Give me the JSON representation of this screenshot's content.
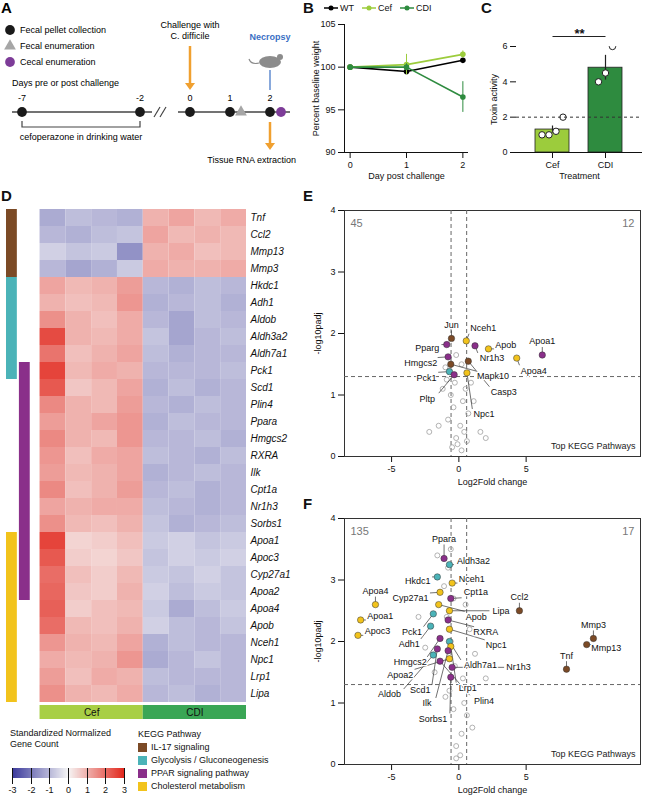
{
  "diagram": {
    "label": "A",
    "legend": [
      {
        "name": "Fecal pellet collection",
        "marker": "circle",
        "color": "#1a1a1a"
      },
      {
        "name": "Fecal enumeration",
        "marker": "triangle",
        "color": "#a6a6a6"
      },
      {
        "name": "Cecal enumeration",
        "marker": "circle",
        "color": "#7d3c98"
      }
    ],
    "axis_label": "Days pre or post challenge",
    "days": [
      -7,
      -2,
      0,
      1,
      2
    ],
    "samplings": [
      [
        0
      ],
      [
        0
      ],
      [
        0
      ],
      [
        0,
        1
      ],
      [
        0,
        2
      ]
    ],
    "treatment": {
      "label": "cefoperazone in drinking water",
      "from": -7,
      "to": -2
    },
    "challenge": {
      "label": "Challenge with C. difficile",
      "day": 0,
      "color": "#f0a030"
    },
    "necropsy": {
      "label": "Necropsy",
      "day": 2,
      "color": "#3a6fc4"
    },
    "harvest": {
      "label": "Tissue RNA extraction",
      "day": 2,
      "color": "#f0a030"
    }
  },
  "chart_data": [
    {
      "label": "B",
      "type": "line",
      "xlabel": "Day post challenge",
      "ylabel": "Percent baseline weight",
      "x": [
        0,
        1,
        2
      ],
      "xlim": [
        -0.1,
        2.1
      ],
      "xticks": [
        0,
        1,
        2
      ],
      "ylim": [
        90,
        105
      ],
      "yticks": [
        90,
        95,
        100,
        105
      ],
      "legend": "top",
      "marker": "circle",
      "series": [
        {
          "name": "WT",
          "color": "#000000",
          "values": [
            100,
            99.5,
            100.8
          ],
          "errors": [
            0,
            0.3,
            0.2
          ]
        },
        {
          "name": "Cef",
          "color": "#9ccc3c",
          "values": [
            100,
            100.3,
            101.5
          ],
          "errors": [
            0,
            1.2,
            0.4
          ]
        },
        {
          "name": "CDI",
          "color": "#2e8b3f",
          "values": [
            100,
            100.0,
            96.5
          ],
          "errors": [
            0,
            0.4,
            1.8
          ]
        }
      ]
    },
    {
      "label": "C",
      "type": "bar",
      "xlabel": "Treatment",
      "ylabel": "Toxin activity",
      "categories": [
        "Cef",
        "CDI"
      ],
      "values": [
        1.3,
        4.8
      ],
      "errors": [
        0.2,
        0.7
      ],
      "points": [
        [
          1.0,
          1.0,
          1.2,
          2.0
        ],
        [
          4.0,
          4.5,
          6.0
        ]
      ],
      "colors": [
        "#9ccc3c",
        "#2e8b3f"
      ],
      "ylim": [
        0,
        6
      ],
      "yticks": [
        0,
        2,
        4,
        6
      ],
      "threshold": 2,
      "significance": "**"
    },
    {
      "label": "D",
      "type": "heatmap",
      "genes": [
        "Tnf",
        "Ccl2",
        "Mmp13",
        "Mmp3",
        "Hkdc1",
        "Adh1",
        "Aldob",
        "Aldh3a2",
        "Aldh7a1",
        "Pck1",
        "Scd1",
        "Plin4",
        "Ppara",
        "Hmgcs2",
        "RXRA",
        "Ilk",
        "Cpt1a",
        "Nr1h3",
        "Sorbs1",
        "Apoa1",
        "Apoc3",
        "Cyp27a1",
        "Apoa2",
        "Apoa4",
        "Apob",
        "Nceh1",
        "Npc1",
        "Lrp1",
        "Lipa"
      ],
      "sample_groups": [
        "Cef",
        "Cef",
        "Cef",
        "Cef",
        "CDI",
        "CDI",
        "CDI",
        "CDI"
      ],
      "groups": [
        {
          "name": "Cef",
          "color": "#a8cf45"
        },
        {
          "name": "CDI",
          "color": "#3aa655"
        }
      ],
      "cells": [
        [
          -1.2,
          -0.9,
          -1.0,
          -1.1,
          1.0,
          1.2,
          0.9,
          1.1
        ],
        [
          -1.0,
          -1.1,
          -0.9,
          -0.8,
          1.2,
          0.9,
          1.0,
          0.9
        ],
        [
          -0.6,
          -0.8,
          -0.7,
          -1.6,
          1.0,
          1.1,
          0.8,
          0.9
        ],
        [
          -1.0,
          -1.3,
          -1.1,
          -0.7,
          1.1,
          1.0,
          1.0,
          1.1
        ],
        [
          1.2,
          0.9,
          1.0,
          1.3,
          -1.0,
          -1.1,
          -0.9,
          -1.0
        ],
        [
          1.0,
          0.8,
          0.9,
          1.4,
          -1.1,
          -1.0,
          -0.9,
          -1.1
        ],
        [
          1.5,
          1.0,
          0.8,
          1.1,
          -1.0,
          -1.3,
          -0.9,
          -1.0
        ],
        [
          2.5,
          1.0,
          0.9,
          1.1,
          -0.8,
          -1.3,
          -1.0,
          -0.9
        ],
        [
          1.9,
          0.8,
          1.0,
          1.2,
          -0.9,
          -1.1,
          -1.0,
          -1.0
        ],
        [
          2.6,
          0.9,
          1.1,
          1.0,
          -1.0,
          -1.0,
          -1.0,
          -0.9
        ],
        [
          2.3,
          0.7,
          0.9,
          1.2,
          -1.1,
          -0.9,
          -1.1,
          -1.0
        ],
        [
          1.6,
          1.0,
          0.9,
          1.3,
          -1.0,
          -1.1,
          -0.9,
          -1.0
        ],
        [
          1.3,
          1.0,
          1.2,
          1.4,
          -1.1,
          -0.9,
          -1.0,
          -1.0
        ],
        [
          1.6,
          1.0,
          0.9,
          1.4,
          -1.0,
          -1.0,
          -0.9,
          -1.1
        ],
        [
          1.4,
          0.8,
          1.1,
          1.2,
          -0.9,
          -1.0,
          -1.1,
          -0.9
        ],
        [
          1.3,
          0.9,
          1.0,
          1.2,
          -1.1,
          -1.0,
          -0.9,
          -1.0
        ],
        [
          1.6,
          0.8,
          1.0,
          1.3,
          -1.0,
          -0.9,
          -1.1,
          -1.0
        ],
        [
          1.2,
          1.0,
          1.1,
          1.1,
          -0.9,
          -1.0,
          -1.1,
          -1.0
        ],
        [
          1.5,
          0.9,
          0.8,
          1.0,
          -0.8,
          -1.1,
          -1.0,
          -0.9
        ],
        [
          2.6,
          0.5,
          0.6,
          0.8,
          -0.7,
          -0.6,
          -0.8,
          -0.7
        ],
        [
          2.3,
          0.6,
          0.5,
          0.7,
          -0.8,
          -0.6,
          -0.7,
          -0.6
        ],
        [
          2.0,
          0.8,
          0.6,
          0.9,
          -0.7,
          -0.8,
          -0.6,
          -0.8
        ],
        [
          2.1,
          0.7,
          0.6,
          1.0,
          -0.6,
          -0.9,
          -0.7,
          -0.8
        ],
        [
          2.2,
          0.6,
          0.8,
          0.9,
          -0.7,
          -1.2,
          -0.9,
          -0.7
        ],
        [
          2.0,
          0.9,
          0.8,
          1.0,
          -0.6,
          -0.9,
          -1.0,
          -0.8
        ],
        [
          1.4,
          1.0,
          0.9,
          1.2,
          -1.1,
          -0.9,
          -1.0,
          -1.0
        ],
        [
          1.1,
          0.9,
          1.0,
          1.4,
          -1.2,
          -1.0,
          -0.8,
          -1.0
        ],
        [
          1.3,
          0.8,
          1.1,
          1.0,
          -0.9,
          -1.0,
          -1.0,
          -1.0
        ],
        [
          1.5,
          1.0,
          0.9,
          1.1,
          -1.0,
          -0.9,
          -1.1,
          -1.0
        ]
      ],
      "colorbar": {
        "label": "Standardized Normalized Gene Count",
        "range": [
          -3,
          3
        ],
        "ticks": [
          -3,
          -2,
          -1,
          0,
          1,
          2,
          3
        ],
        "colors": [
          "#3b3a9c",
          "#f6f6f6",
          "#e2291e"
        ]
      },
      "pathway_legend_title": "KEGG Pathway",
      "pathways": [
        {
          "name": "IL-17 signaling",
          "color": "#7b4a26"
        },
        {
          "name": "Glycolysis / Gluconeogenesis",
          "color": "#4bb3b8"
        },
        {
          "name": "PPAR signaling pathway",
          "color": "#8a2f8a"
        },
        {
          "name": "Cholesterol metabolism",
          "color": "#f2c31c"
        }
      ],
      "gene_pathways": [
        [
          0
        ],
        [
          0
        ],
        [
          0
        ],
        [
          0
        ],
        [
          1
        ],
        [
          1
        ],
        [
          1
        ],
        [
          1
        ],
        [
          1
        ],
        [
          1,
          2
        ],
        [
          2
        ],
        [
          2
        ],
        [
          2
        ],
        [
          2
        ],
        [
          2
        ],
        [
          2
        ],
        [
          2
        ],
        [
          2
        ],
        [
          2
        ],
        [
          2,
          3
        ],
        [
          2,
          3
        ],
        [
          2,
          3
        ],
        [
          2,
          3
        ],
        [
          3
        ],
        [
          3
        ],
        [
          3
        ],
        [
          3
        ],
        [
          3
        ],
        [
          3
        ]
      ]
    },
    {
      "label": "E",
      "type": "scatter",
      "xlabel": "Log2Fold change",
      "ylabel": "-log10padj",
      "xlim": [
        -8.5,
        13.5
      ],
      "xticks": [
        -5,
        0,
        5
      ],
      "ylim": [
        0,
        4
      ],
      "yticks": [
        0,
        1,
        2,
        3,
        4
      ],
      "fc_cutoffs": [
        -0.58,
        0.58
      ],
      "padj_cutoff": 1.3,
      "counts": [
        45,
        12
      ],
      "annotation": "Top KEGG Pathways",
      "background_color": "#a0a0a0",
      "background_points": [
        [
          -0.2,
          0.3
        ],
        [
          0.1,
          0.5
        ],
        [
          -0.4,
          0.8
        ],
        [
          0.3,
          0.9
        ],
        [
          -0.6,
          1.0
        ],
        [
          0.5,
          1.1
        ],
        [
          -0.1,
          0.2
        ],
        [
          0.2,
          0.1
        ],
        [
          -0.8,
          0.6
        ],
        [
          0.7,
          0.7
        ],
        [
          -1.2,
          1.1
        ],
        [
          1.1,
          0.9
        ],
        [
          -0.3,
          1.2
        ],
        [
          0.4,
          0.4
        ],
        [
          -1.5,
          0.5
        ],
        [
          1.6,
          0.4
        ],
        [
          -0.5,
          0.15
        ],
        [
          0.6,
          0.25
        ],
        [
          -2.2,
          0.4
        ],
        [
          2.0,
          0.3
        ],
        [
          -0.9,
          1.25
        ],
        [
          0.9,
          1.2
        ],
        [
          -0.7,
          1.4
        ],
        [
          -1.0,
          1.45
        ],
        [
          0.2,
          1.5
        ],
        [
          -0.2,
          1.65
        ]
      ],
      "points": [
        {
          "gene": "Pparg",
          "x": -0.9,
          "y": 1.82,
          "pathway": 2
        },
        {
          "gene": "Jun",
          "x": -0.55,
          "y": 1.92,
          "pathway": 0
        },
        {
          "gene": "Nceh1",
          "x": 0.55,
          "y": 1.88,
          "pathway": 3
        },
        {
          "gene": "Nr1h3",
          "x": 1.2,
          "y": 1.8,
          "pathway": 2
        },
        {
          "gene": "Hmgcs2",
          "x": -0.8,
          "y": 1.62,
          "pathway": 2
        },
        {
          "gene": "Mapk10",
          "x": -0.6,
          "y": 1.5,
          "pathway": 0
        },
        {
          "gene": "Apob",
          "x": 2.2,
          "y": 1.75,
          "pathway": 3
        },
        {
          "gene": "Apoa1",
          "x": 6.2,
          "y": 1.65,
          "pathway": 2
        },
        {
          "gene": "Apoa4",
          "x": 4.3,
          "y": 1.6,
          "pathway": 3
        },
        {
          "gene": "Casp3",
          "x": 0.7,
          "y": 1.55,
          "pathway": 0
        },
        {
          "gene": "Pck1",
          "x": -0.7,
          "y": 1.38,
          "pathway": 1
        },
        {
          "gene": "Npc1",
          "x": 0.6,
          "y": 1.36,
          "pathway": 3
        },
        {
          "gene": "Pltp",
          "x": -0.35,
          "y": 1.33,
          "pathway": 2
        }
      ]
    },
    {
      "label": "F",
      "type": "scatter",
      "xlabel": "Log2Fold change",
      "ylabel": "-log10padj",
      "xlim": [
        -8.5,
        13.5
      ],
      "xticks": [
        -5,
        0,
        5
      ],
      "ylim": [
        0,
        4
      ],
      "yticks": [
        0,
        1,
        2,
        3,
        4
      ],
      "fc_cutoffs": [
        -0.58,
        0.58
      ],
      "padj_cutoff": 1.3,
      "counts": [
        135,
        17
      ],
      "annotation": "Top KEGG Pathways",
      "background_color": "#a0a0a0",
      "background_points": [
        [
          -0.2,
          0.3
        ],
        [
          0.2,
          0.5
        ],
        [
          -0.4,
          0.9
        ],
        [
          0.4,
          1.0
        ],
        [
          -0.7,
          1.2
        ],
        [
          0.6,
          0.8
        ],
        [
          -1.0,
          1.1
        ],
        [
          1.0,
          0.6
        ],
        [
          -0.3,
          1.6
        ],
        [
          -0.6,
          2.0
        ],
        [
          -0.9,
          2.4
        ],
        [
          -0.4,
          2.7
        ],
        [
          -1.1,
          2.9
        ],
        [
          -0.8,
          3.2
        ],
        [
          -0.6,
          3.5
        ],
        [
          -1.6,
          3.4
        ],
        [
          0.5,
          2.6
        ],
        [
          0.8,
          2.2
        ],
        [
          1.2,
          1.8
        ],
        [
          -2.5,
          1.9
        ],
        [
          -3.0,
          2.4
        ],
        [
          2.0,
          1.4
        ],
        [
          -1.8,
          1.5
        ],
        [
          0.3,
          1.4
        ],
        [
          -0.2,
          0.1
        ],
        [
          0.1,
          0.15
        ]
      ],
      "points": [
        {
          "gene": "Ppara",
          "x": -1.1,
          "y": 3.35,
          "pathway": 2
        },
        {
          "gene": "Aldh3a2",
          "x": -0.7,
          "y": 3.25,
          "pathway": 1
        },
        {
          "gene": "Hkdc1",
          "x": -1.6,
          "y": 3.05,
          "pathway": 1
        },
        {
          "gene": "Nceh1",
          "x": -0.5,
          "y": 2.95,
          "pathway": 3
        },
        {
          "gene": "Cyp27a1",
          "x": -1.4,
          "y": 2.8,
          "pathway": 3
        },
        {
          "gene": "Apoa4",
          "x": -6.2,
          "y": 2.6,
          "pathway": 3
        },
        {
          "gene": "Cpt1a",
          "x": -0.6,
          "y": 2.7,
          "pathway": 2
        },
        {
          "gene": "Apob",
          "x": -1.5,
          "y": 2.6,
          "pathway": 3
        },
        {
          "gene": "Lipa",
          "x": -0.7,
          "y": 2.5,
          "pathway": 3
        },
        {
          "gene": "Ccl2",
          "x": 4.5,
          "y": 2.5,
          "pathway": 0
        },
        {
          "gene": "Pck1",
          "x": -1.9,
          "y": 2.45,
          "pathway": 1
        },
        {
          "gene": "RXRA",
          "x": -0.8,
          "y": 2.35,
          "pathway": 2
        },
        {
          "gene": "Apoa1",
          "x": -7.3,
          "y": 2.35,
          "pathway": 3
        },
        {
          "gene": "Adh1",
          "x": -2.1,
          "y": 2.25,
          "pathway": 1
        },
        {
          "gene": "Apoc3",
          "x": -7.5,
          "y": 2.1,
          "pathway": 3
        },
        {
          "gene": "Npc1",
          "x": -0.7,
          "y": 2.2,
          "pathway": 3
        },
        {
          "gene": "Mmp3",
          "x": 10.0,
          "y": 2.05,
          "pathway": 0
        },
        {
          "gene": "Hmgcs2",
          "x": -1.4,
          "y": 2.05,
          "pathway": 2
        },
        {
          "gene": "Aldh7a1",
          "x": -0.7,
          "y": 2.0,
          "pathway": 1
        },
        {
          "gene": "Mmp13",
          "x": 9.5,
          "y": 1.95,
          "pathway": 0
        },
        {
          "gene": "Lrp1",
          "x": -0.6,
          "y": 1.92,
          "pathway": 3
        },
        {
          "gene": "Scd1",
          "x": -1.6,
          "y": 1.88,
          "pathway": 2
        },
        {
          "gene": "Ilk",
          "x": -0.8,
          "y": 1.85,
          "pathway": 2
        },
        {
          "gene": "Aldob",
          "x": -1.9,
          "y": 1.78,
          "pathway": 1
        },
        {
          "gene": "Apoa2",
          "x": -0.7,
          "y": 1.72,
          "pathway": 3
        },
        {
          "gene": "Plin4",
          "x": -1.4,
          "y": 1.68,
          "pathway": 2
        },
        {
          "gene": "Tnf",
          "x": 8.0,
          "y": 1.55,
          "pathway": 0
        },
        {
          "gene": "Nr1h3",
          "x": -0.5,
          "y": 1.58,
          "pathway": 2
        },
        {
          "gene": "Sorbs1",
          "x": -0.6,
          "y": 1.42,
          "pathway": 2
        }
      ]
    }
  ]
}
